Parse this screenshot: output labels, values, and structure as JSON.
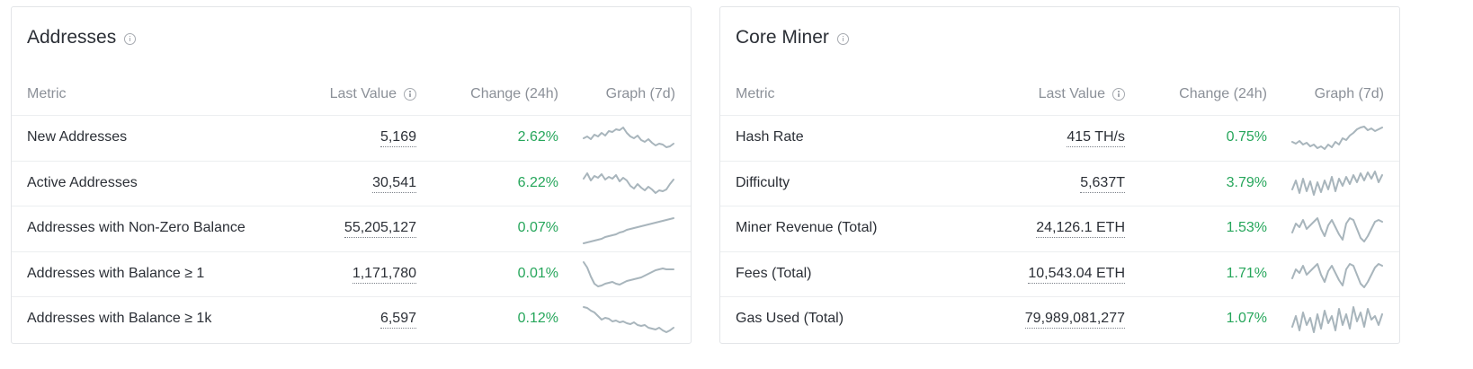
{
  "accent_colors": {
    "positive_change": "#26a65b",
    "sparkline": "#a8b5bc"
  },
  "panels": [
    {
      "title": "Addresses",
      "info_icon": "info-circle-icon",
      "headers": {
        "metric": "Metric",
        "last_value": "Last Value",
        "change": "Change (24h)",
        "graph": "Graph (7d)"
      },
      "rows": [
        {
          "metric": "New Addresses",
          "value": "5,169",
          "change": "2.62%",
          "spark": [
            18,
            16,
            19,
            14,
            16,
            12,
            15,
            10,
            11,
            8,
            9,
            6,
            12,
            16,
            18,
            15,
            20,
            22,
            19,
            23,
            26,
            24,
            25,
            28,
            27,
            24
          ]
        },
        {
          "metric": "Active Addresses",
          "value": "30,541",
          "change": "6.22%",
          "spark": [
            12,
            6,
            14,
            9,
            11,
            7,
            13,
            10,
            12,
            8,
            15,
            11,
            14,
            20,
            23,
            18,
            22,
            25,
            21,
            24,
            28,
            25,
            26,
            24,
            18,
            13
          ]
        },
        {
          "metric": "Addresses with Non-Zero Balance",
          "value": "55,205,127",
          "change": "0.07%",
          "spark": [
            34,
            33,
            32,
            31,
            30,
            29,
            27,
            26,
            25,
            24,
            22,
            21,
            19,
            18,
            17,
            16,
            15,
            14,
            13,
            12,
            11,
            10,
            9,
            8,
            7,
            6
          ]
        },
        {
          "metric": "Addresses with Balance ≥ 1",
          "value": "1,171,780",
          "change": "0.01%",
          "spark": [
            4,
            10,
            20,
            28,
            31,
            30,
            28,
            27,
            26,
            28,
            29,
            27,
            25,
            24,
            23,
            22,
            21,
            19,
            17,
            15,
            13,
            12,
            11,
            12,
            12,
            12
          ]
        },
        {
          "metric": "Addresses with Balance ≥ 1k",
          "value": "6,597",
          "change": "0.12%",
          "spark": [
            4,
            5,
            8,
            10,
            14,
            18,
            16,
            17,
            20,
            19,
            21,
            20,
            22,
            23,
            21,
            24,
            25,
            24,
            27,
            28,
            29,
            27,
            30,
            32,
            30,
            27
          ]
        }
      ]
    },
    {
      "title": "Core Miner",
      "info_icon": "info-circle-icon",
      "headers": {
        "metric": "Metric",
        "last_value": "Last Value",
        "change": "Change (24h)",
        "graph": "Graph (7d)"
      },
      "rows": [
        {
          "metric": "Hash Rate",
          "value": "415 TH/s",
          "change": "0.75%",
          "spark": [
            22,
            24,
            21,
            25,
            23,
            27,
            25,
            29,
            27,
            30,
            25,
            28,
            22,
            25,
            18,
            20,
            15,
            12,
            8,
            6,
            5,
            9,
            7,
            10,
            8,
            6
          ]
        },
        {
          "metric": "Difficulty",
          "value": "5,637T",
          "change": "3.79%",
          "spark": [
            24,
            14,
            28,
            12,
            26,
            15,
            30,
            16,
            27,
            14,
            24,
            10,
            26,
            12,
            20,
            10,
            18,
            8,
            16,
            6,
            14,
            5,
            12,
            4,
            16,
            8
          ]
        },
        {
          "metric": "Miner Revenue (Total)",
          "value": "24,126.1 ETH",
          "change": "1.53%",
          "spark": [
            22,
            12,
            16,
            8,
            18,
            14,
            10,
            6,
            18,
            26,
            14,
            8,
            16,
            24,
            30,
            12,
            6,
            8,
            18,
            28,
            32,
            26,
            18,
            10,
            8,
            10
          ]
        },
        {
          "metric": "Fees (Total)",
          "value": "10,543.04 ETH",
          "change": "1.71%",
          "spark": [
            22,
            12,
            16,
            8,
            18,
            14,
            10,
            6,
            18,
            26,
            14,
            8,
            16,
            24,
            30,
            12,
            6,
            8,
            18,
            28,
            32,
            26,
            18,
            10,
            6,
            8
          ]
        },
        {
          "metric": "Gas Used (Total)",
          "value": "79,989,081,277",
          "change": "1.07%",
          "spark": [
            26,
            14,
            30,
            10,
            24,
            16,
            32,
            12,
            28,
            8,
            22,
            14,
            30,
            6,
            24,
            12,
            28,
            4,
            20,
            10,
            26,
            6,
            18,
            14,
            24,
            12
          ]
        }
      ]
    }
  ]
}
